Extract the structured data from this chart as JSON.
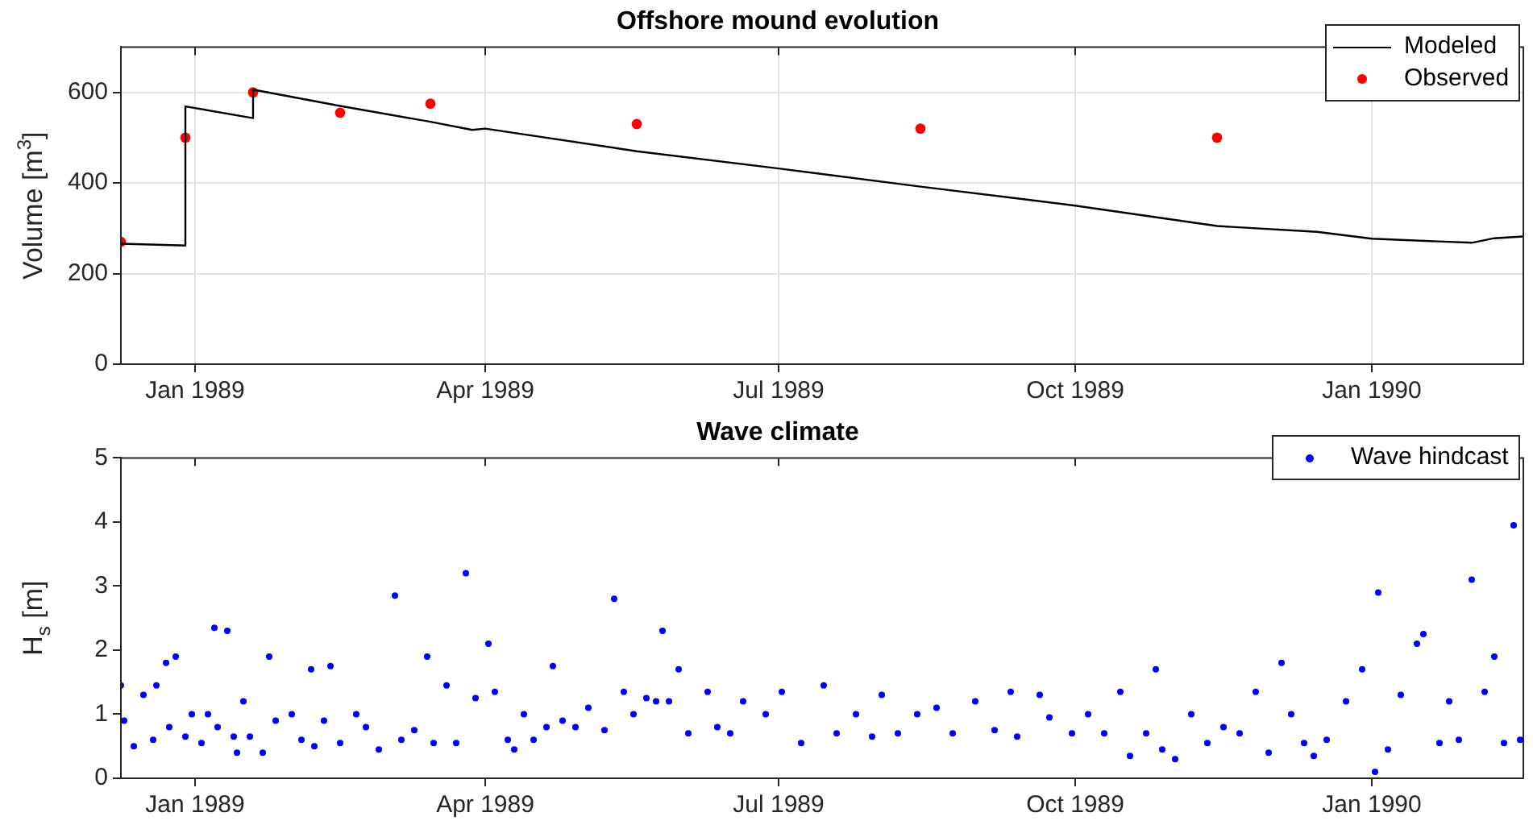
{
  "chart_data": [
    {
      "type": "line",
      "title": "Offshore mound evolution",
      "ylabel": "Volume [m$^{3}$]",
      "xlim": [
        "1988-12-09",
        "1990-02-17"
      ],
      "xticks": [
        {
          "value": "1989-01-01",
          "label": "Jan 1989"
        },
        {
          "value": "1989-04-01",
          "label": "Apr 1989"
        },
        {
          "value": "1989-07-01",
          "label": "Jul 1989"
        },
        {
          "value": "1989-10-01",
          "label": "Oct 1989"
        },
        {
          "value": "1990-01-01",
          "label": "Jan 1990"
        }
      ],
      "ylim": [
        0,
        700
      ],
      "yticks": [
        0,
        200,
        400,
        600
      ],
      "grid": true,
      "legend": "top right",
      "series": [
        {
          "name": "Modeled",
          "type": "line",
          "marker": "none",
          "color": "#000000",
          "x": [
            "1988-12-09",
            "1988-12-29",
            "1988-12-29",
            "1989-01-19",
            "1989-01-19",
            "1989-02-15",
            "1989-03-15",
            "1989-03-28",
            "1989-04-01",
            "1989-05-18",
            "1989-07-01",
            "1989-08-14",
            "1989-10-01",
            "1989-11-14",
            "1989-12-15",
            "1990-01-01",
            "1990-02-01",
            "1990-02-08",
            "1990-02-17"
          ],
          "values": [
            266,
            262,
            569,
            543,
            606,
            570,
            535,
            517,
            520,
            470,
            432,
            392,
            350,
            305,
            292,
            277,
            268,
            278,
            282
          ]
        },
        {
          "name": "Observed",
          "type": "scatter",
          "marker": "circle",
          "color": "#ff0000",
          "x": [
            "1988-12-09",
            "1988-12-29",
            "1989-01-19",
            "1989-02-15",
            "1989-03-15",
            "1989-05-18",
            "1989-08-14",
            "1989-11-14"
          ],
          "values": [
            270,
            500,
            600,
            555,
            575,
            530,
            520,
            500
          ]
        }
      ]
    },
    {
      "type": "scatter",
      "title": "Wave climate",
      "ylabel": "H$_{s}$ [m]",
      "xlim": [
        "1988-12-09",
        "1990-02-17"
      ],
      "xticks": [
        {
          "value": "1989-01-01",
          "label": "Jan 1989"
        },
        {
          "value": "1989-04-01",
          "label": "Apr 1989"
        },
        {
          "value": "1989-07-01",
          "label": "Jul 1989"
        },
        {
          "value": "1989-10-01",
          "label": "Oct 1989"
        },
        {
          "value": "1990-01-01",
          "label": "Jan 1990"
        }
      ],
      "ylim": [
        0,
        5
      ],
      "yticks": [
        0,
        1,
        2,
        3,
        4,
        5
      ],
      "grid": false,
      "legend": "top right",
      "marker": "circle",
      "series": [
        {
          "name": "Wave hindcast",
          "color": "#0000ff",
          "x": [
            "1988-12-09",
            "1988-12-10",
            "1988-12-13",
            "1988-12-16",
            "1988-12-19",
            "1988-12-20",
            "1988-12-23",
            "1988-12-24",
            "1988-12-26",
            "1988-12-29",
            "1988-12-31",
            "1989-01-03",
            "1989-01-05",
            "1989-01-07",
            "1989-01-08",
            "1989-01-11",
            "1989-01-13",
            "1989-01-14",
            "1989-01-16",
            "1989-01-18",
            "1989-01-22",
            "1989-01-24",
            "1989-01-26",
            "1989-01-31",
            "1989-02-03",
            "1989-02-06",
            "1989-02-07",
            "1989-02-10",
            "1989-02-12",
            "1989-02-15",
            "1989-02-20",
            "1989-02-23",
            "1989-02-27",
            "1989-03-04",
            "1989-03-06",
            "1989-03-10",
            "1989-03-14",
            "1989-03-16",
            "1989-03-20",
            "1989-03-23",
            "1989-03-26",
            "1989-03-29",
            "1989-04-02",
            "1989-04-04",
            "1989-04-08",
            "1989-04-10",
            "1989-04-13",
            "1989-04-16",
            "1989-04-20",
            "1989-04-22",
            "1989-04-25",
            "1989-04-29",
            "1989-05-03",
            "1989-05-08",
            "1989-05-11",
            "1989-05-14",
            "1989-05-17",
            "1989-05-21",
            "1989-05-24",
            "1989-05-26",
            "1989-05-28",
            "1989-05-31",
            "1989-06-03",
            "1989-06-09",
            "1989-06-12",
            "1989-06-16",
            "1989-06-20",
            "1989-06-27",
            "1989-07-02",
            "1989-07-08",
            "1989-07-15",
            "1989-07-19",
            "1989-07-25",
            "1989-07-30",
            "1989-08-02",
            "1989-08-07",
            "1989-08-13",
            "1989-08-19",
            "1989-08-24",
            "1989-08-31",
            "1989-09-06",
            "1989-09-11",
            "1989-09-13",
            "1989-09-20",
            "1989-09-23",
            "1989-09-30",
            "1989-10-05",
            "1989-10-10",
            "1989-10-15",
            "1989-10-18",
            "1989-10-23",
            "1989-10-26",
            "1989-10-28",
            "1989-11-01",
            "1989-11-06",
            "1989-11-11",
            "1989-11-16",
            "1989-11-21",
            "1989-11-26",
            "1989-11-30",
            "1989-12-04",
            "1989-12-07",
            "1989-12-11",
            "1989-12-14",
            "1989-12-18",
            "1989-12-24",
            "1989-12-29",
            "1990-01-02",
            "1990-01-03",
            "1990-01-06",
            "1990-01-10",
            "1990-01-15",
            "1990-01-17",
            "1990-01-22",
            "1990-01-25",
            "1990-01-28",
            "1990-02-01",
            "1990-02-05",
            "1990-02-08",
            "1990-02-11",
            "1990-02-14",
            "1990-02-16"
          ],
          "values": [
            1.45,
            0.9,
            0.5,
            1.3,
            0.6,
            1.45,
            1.8,
            0.8,
            1.9,
            0.65,
            1.0,
            0.55,
            1.0,
            2.35,
            0.8,
            2.3,
            0.65,
            0.4,
            1.2,
            0.65,
            0.4,
            1.9,
            0.9,
            1.0,
            0.6,
            1.7,
            0.5,
            0.9,
            1.75,
            0.55,
            1.0,
            0.8,
            0.45,
            2.85,
            0.6,
            0.75,
            1.9,
            0.55,
            1.45,
            0.55,
            3.2,
            1.25,
            2.1,
            1.35,
            0.6,
            0.45,
            1.0,
            0.6,
            0.8,
            1.75,
            0.9,
            0.8,
            1.1,
            0.75,
            2.8,
            1.35,
            1.0,
            1.25,
            1.2,
            2.3,
            1.2,
            1.7,
            0.7,
            1.35,
            0.8,
            0.7,
            1.2,
            1.0,
            1.35,
            0.55,
            1.45,
            0.7,
            1.0,
            0.65,
            1.3,
            0.7,
            1.0,
            1.1,
            0.7,
            1.2,
            0.75,
            1.35,
            0.65,
            1.3,
            0.95,
            0.7,
            1.0,
            0.7,
            1.35,
            0.35,
            0.7,
            1.7,
            0.45,
            0.3,
            1.0,
            0.55,
            0.8,
            0.7,
            1.35,
            0.4,
            1.8,
            1.0,
            0.55,
            0.35,
            0.6,
            1.2,
            1.7,
            0.1,
            2.9,
            0.45,
            1.3,
            2.1,
            2.25,
            0.55,
            1.2,
            0.6,
            3.1,
            1.35,
            1.9,
            0.55,
            3.95,
            0.6
          ]
        }
      ]
    }
  ]
}
